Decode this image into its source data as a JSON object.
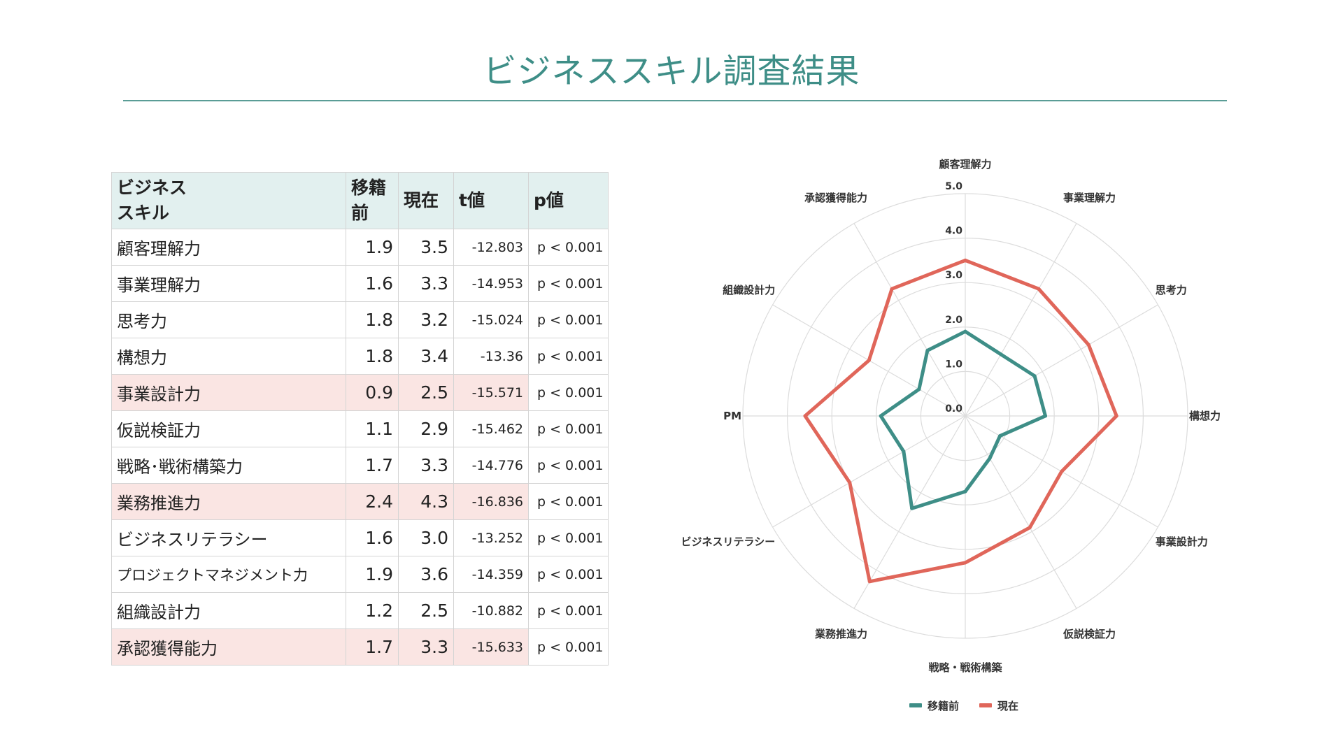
{
  "title": "ビジネススキル調査結果",
  "table": {
    "headers": [
      "ビジネス\nスキル",
      "移籍\n前",
      "現在",
      "t値",
      "p値"
    ],
    "rows": [
      {
        "skill": "顧客理解力",
        "before": "1.9",
        "now": "3.5",
        "t": "-12.803",
        "p": "p < 0.001",
        "highlight": false
      },
      {
        "skill": "事業理解力",
        "before": "1.6",
        "now": "3.3",
        "t": "-14.953",
        "p": "p < 0.001",
        "highlight": false
      },
      {
        "skill": "思考力",
        "before": "1.8",
        "now": "3.2",
        "t": "-15.024",
        "p": "p < 0.001",
        "highlight": false
      },
      {
        "skill": "構想力",
        "before": "1.8",
        "now": "3.4",
        "t": "-13.36",
        "p": "p < 0.001",
        "highlight": false
      },
      {
        "skill": "事業設計力",
        "before": "0.9",
        "now": "2.5",
        "t": "-15.571",
        "p": "p < 0.001",
        "highlight": true
      },
      {
        "skill": "仮説検証力",
        "before": "1.1",
        "now": "2.9",
        "t": "-15.462",
        "p": "p < 0.001",
        "highlight": false
      },
      {
        "skill": "戦略･戦術構築力",
        "before": "1.7",
        "now": "3.3",
        "t": "-14.776",
        "p": "p < 0.001",
        "highlight": false
      },
      {
        "skill": "業務推進力",
        "before": "2.4",
        "now": "4.3",
        "t": "-16.836",
        "p": "p < 0.001",
        "highlight": true
      },
      {
        "skill": "ビジネスリテラシー",
        "before": "1.6",
        "now": "3.0",
        "t": "-13.252",
        "p": "p < 0.001",
        "highlight": false
      },
      {
        "skill": "プロジェクトマネジメント力",
        "before": "1.9",
        "now": "3.6",
        "t": "-14.359",
        "p": "p < 0.001",
        "highlight": false
      },
      {
        "skill": "組織設計力",
        "before": "1.2",
        "now": "2.5",
        "t": "-10.882",
        "p": "p < 0.001",
        "highlight": false
      },
      {
        "skill": "承認獲得能力",
        "before": "1.7",
        "now": "3.3",
        "t": "-15.633",
        "p": "p < 0.001",
        "highlight": true
      }
    ]
  },
  "chart_data": {
    "type": "radar",
    "categories": [
      "顧客理解力",
      "事業理解力",
      "思考力",
      "構想力",
      "事業設計力",
      "仮説検証力",
      "戦略・戦術構築",
      "業務推進力",
      "ビジネスリテラシー",
      "PM",
      "組織設計力",
      "承認獲得能力"
    ],
    "rmin": 0,
    "rmax": 5,
    "ticks": [
      "0.0",
      "1.0",
      "2.0",
      "3.0",
      "4.0",
      "5.0"
    ],
    "grid": true,
    "legend_position": "bottom",
    "series": [
      {
        "name": "移籍前",
        "color": "#3e8e87",
        "values": [
          1.9,
          1.6,
          1.8,
          1.8,
          0.9,
          1.1,
          1.7,
          2.4,
          1.6,
          1.9,
          1.2,
          1.7
        ]
      },
      {
        "name": "現在",
        "color": "#e0665a",
        "values": [
          3.5,
          3.3,
          3.2,
          3.4,
          2.5,
          2.9,
          3.3,
          4.3,
          3.0,
          3.6,
          2.5,
          3.3
        ]
      }
    ]
  }
}
